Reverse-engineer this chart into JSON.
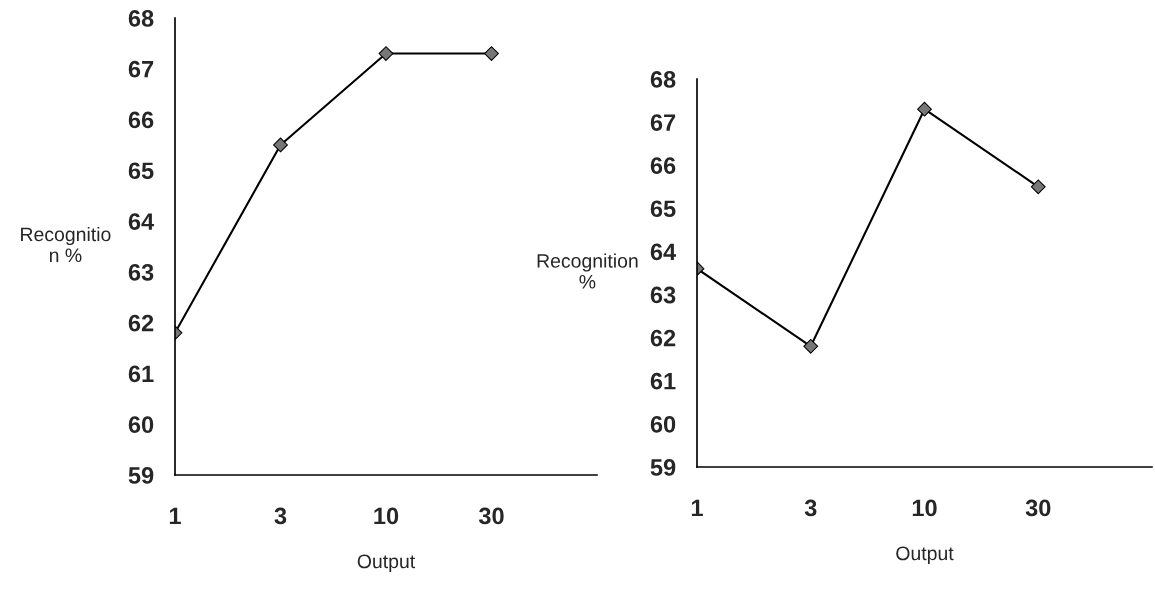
{
  "chart_data": [
    {
      "type": "line",
      "categories": [
        "1",
        "3",
        "10",
        "30"
      ],
      "values": [
        61.8,
        65.5,
        67.3,
        67.3
      ],
      "color": "#000000",
      "marker": "diamond",
      "line_style": "solid",
      "xlabel": "Output",
      "ylabel": "Recognitio\nn %",
      "ylim": [
        59,
        68
      ],
      "yticks": [
        59,
        60,
        61,
        62,
        63,
        64,
        65,
        66,
        67,
        68
      ],
      "grid": false,
      "legend": false
    },
    {
      "type": "line",
      "categories": [
        "1",
        "3",
        "10",
        "30"
      ],
      "values": [
        63.6,
        61.8,
        67.3,
        65.5
      ],
      "color": "#000000",
      "marker": "diamond",
      "line_style": "solid",
      "xlabel": "Output",
      "ylabel": "Recognition\n%",
      "ylim": [
        59,
        68
      ],
      "yticks": [
        59,
        60,
        61,
        62,
        63,
        64,
        65,
        66,
        67,
        68
      ],
      "grid": false,
      "legend": false
    }
  ]
}
